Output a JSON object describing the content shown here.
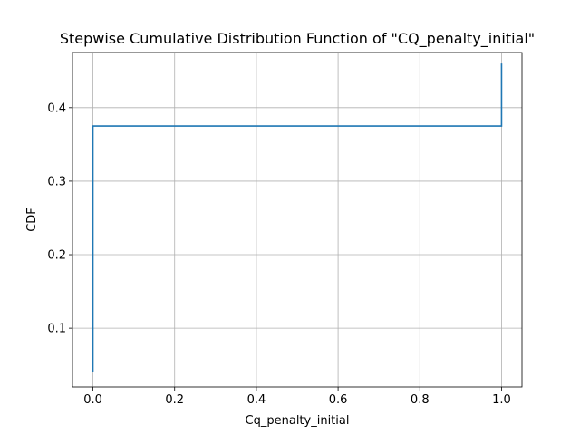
{
  "chart_data": {
    "type": "line",
    "drawstyle": "steps-post",
    "title": "Stepwise Cumulative Distribution Function of \"CQ_penalty_initial\"",
    "xlabel": "Cq_penalty_initial",
    "ylabel": "CDF",
    "xlim": [
      -0.05,
      1.05
    ],
    "ylim": [
      0.02,
      0.475
    ],
    "xticks": [
      0.0,
      0.2,
      0.4,
      0.6,
      0.8,
      1.0
    ],
    "xtick_labels": [
      "0.0",
      "0.2",
      "0.4",
      "0.6",
      "0.8",
      "1.0"
    ],
    "yticks": [
      0.1,
      0.2,
      0.3,
      0.4
    ],
    "ytick_labels": [
      "0.1",
      "0.2",
      "0.3",
      "0.4"
    ],
    "grid": true,
    "series": [
      {
        "x": [
          0.0,
          0.0,
          1.0,
          1.0
        ],
        "y": [
          0.041,
          0.375,
          0.375,
          0.46
        ],
        "color": "#1f77b4"
      }
    ]
  }
}
